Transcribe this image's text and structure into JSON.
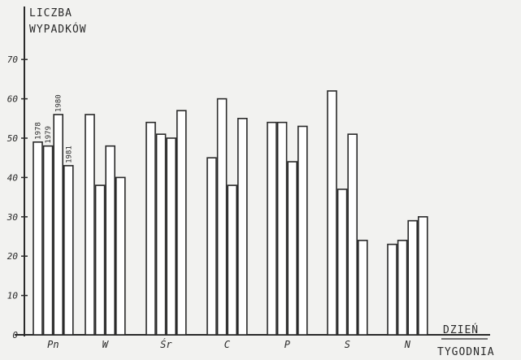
{
  "chart_data": {
    "type": "bar",
    "title": "",
    "ylabel_lines": [
      "LICZBA",
      "WYPADKÓW"
    ],
    "xlabel_lines": [
      "DZIEŃ",
      "TYGODNIA"
    ],
    "ylim": [
      0,
      70
    ],
    "yticks": [
      0,
      10,
      20,
      30,
      40,
      50,
      60,
      70
    ],
    "grid": false,
    "categories": [
      "Pn",
      "W",
      "Śr",
      "C",
      "P",
      "S",
      "N"
    ],
    "series": [
      {
        "name": "1978",
        "values": [
          49,
          56,
          54,
          45,
          54,
          62,
          23
        ]
      },
      {
        "name": "1979",
        "values": [
          48,
          38,
          51,
          60,
          54,
          37,
          24
        ]
      },
      {
        "name": "1980",
        "values": [
          56,
          48,
          50,
          38,
          44,
          51,
          29
        ]
      },
      {
        "name": "1981",
        "values": [
          43,
          40,
          57,
          55,
          53,
          24,
          30
        ]
      }
    ],
    "series_labels_on_category": "Pn"
  }
}
